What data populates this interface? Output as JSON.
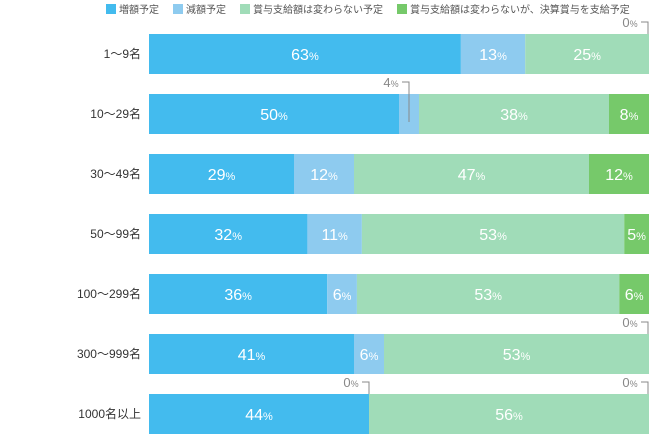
{
  "chart_data": {
    "type": "bar",
    "orientation": "horizontal",
    "stacked": true,
    "legend_position": "top",
    "unit": "%",
    "categories": [
      "1〜9名",
      "10〜29名",
      "30〜49名",
      "50〜99名",
      "100〜299名",
      "300〜999名",
      "1000名以上"
    ],
    "series": [
      {
        "name": "増額予定",
        "color": "#43bbee",
        "values": [
          63,
          50,
          29,
          32,
          36,
          41,
          44
        ]
      },
      {
        "name": "減額予定",
        "color": "#8ecbef",
        "values": [
          13,
          4,
          12,
          11,
          6,
          6,
          0
        ]
      },
      {
        "name": "賞与支給額は変わらない予定",
        "color": "#a0dcb8",
        "values": [
          25,
          38,
          47,
          53,
          53,
          53,
          56
        ]
      },
      {
        "name": "賞与支給額は変わらないが、決算賞与を支給予定",
        "color": "#76c96a",
        "values": [
          0,
          8,
          12,
          5,
          6,
          0,
          0
        ]
      }
    ]
  }
}
